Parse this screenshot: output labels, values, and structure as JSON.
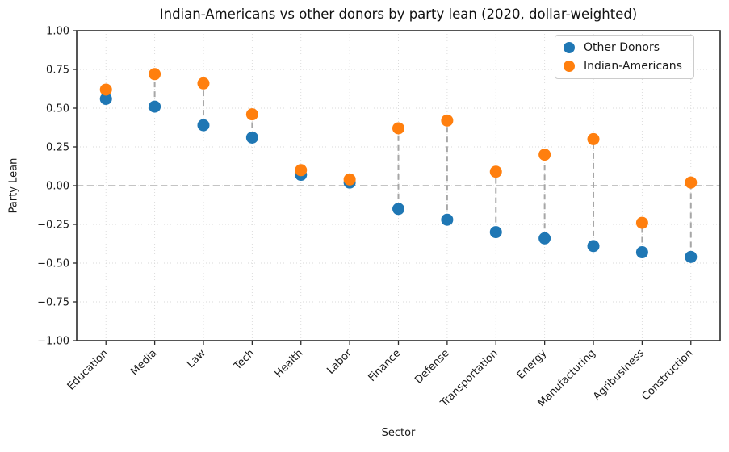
{
  "chart_data": {
    "type": "scatter",
    "title": "Indian-Americans vs other donors by party lean (2020, dollar-weighted)",
    "xlabel": "Sector",
    "ylabel": "Party Lean",
    "ylim": [
      -1.0,
      1.0
    ],
    "ytick_step": 0.25,
    "ytick_format_decimals": 2,
    "grid": true,
    "zero_line": true,
    "connector_style": "dashed gray vertical line between paired points",
    "legend_position": "upper-right",
    "categories": [
      "Education",
      "Media",
      "Law",
      "Tech",
      "Health",
      "Labor",
      "Finance",
      "Defense",
      "Transportation",
      "Energy",
      "Manufacturing",
      "Agribusiness",
      "Construction"
    ],
    "series": [
      {
        "name": "Other Donors",
        "color": "#1f77b4",
        "values": [
          0.56,
          0.51,
          0.39,
          0.31,
          0.07,
          0.02,
          -0.15,
          -0.22,
          -0.3,
          -0.34,
          -0.39,
          -0.43,
          -0.46
        ]
      },
      {
        "name": "Indian-Americans",
        "color": "#ff7f0e",
        "values": [
          0.62,
          0.72,
          0.66,
          0.46,
          0.1,
          0.04,
          0.37,
          0.42,
          0.09,
          0.2,
          0.3,
          -0.24,
          0.02
        ]
      }
    ]
  }
}
